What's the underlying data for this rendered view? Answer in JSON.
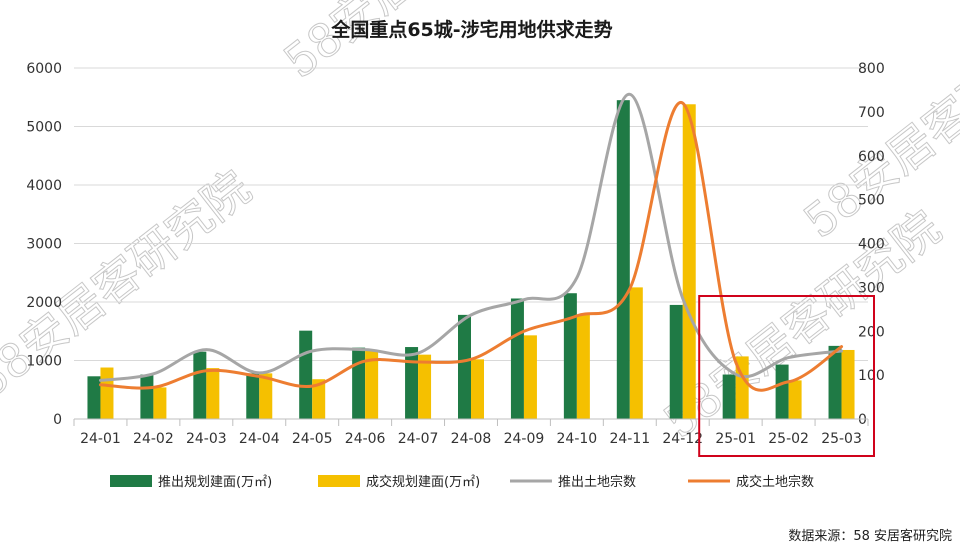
{
  "chart_data": {
    "type": "bar",
    "title": "全国重点65城-涉宅用地供求走势",
    "categories": [
      "24-01",
      "24-02",
      "24-03",
      "24-04",
      "24-05",
      "24-06",
      "24-07",
      "24-08",
      "24-09",
      "24-10",
      "24-11",
      "24-12",
      "25-01",
      "25-02",
      "25-03"
    ],
    "ylim_left": [
      0,
      6000
    ],
    "yticks_left": [
      "0",
      "1000",
      "2000",
      "3000",
      "4000",
      "5000",
      "6000"
    ],
    "ylim_right": [
      0,
      800
    ],
    "yticks_right": [
      "0",
      "100",
      "200",
      "300",
      "400",
      "500",
      "600",
      "700",
      "800"
    ],
    "grid": true,
    "legend_position": "bottom",
    "series": [
      {
        "name": "推出规划建面(万㎡)",
        "type": "bar",
        "axis": "left",
        "color": "#1f7a45",
        "values": [
          730,
          760,
          1150,
          780,
          1510,
          1220,
          1230,
          1780,
          2060,
          2150,
          5450,
          1950,
          760,
          930,
          1250
        ]
      },
      {
        "name": "成交规划建面(万㎡)",
        "type": "bar",
        "axis": "left",
        "color": "#f5c000",
        "values": [
          880,
          540,
          870,
          780,
          680,
          1180,
          1100,
          1020,
          1430,
          1780,
          2250,
          5380,
          1070,
          660,
          1180
        ]
      },
      {
        "name": "推出土地宗数",
        "type": "line",
        "axis": "right",
        "color": "#a6a6a6",
        "values": [
          88,
          103,
          158,
          105,
          155,
          158,
          150,
          237,
          272,
          322,
          740,
          275,
          102,
          140,
          155
        ]
      },
      {
        "name": "成交土地宗数",
        "type": "line",
        "axis": "right",
        "color": "#ed7d31",
        "values": [
          78,
          72,
          110,
          97,
          75,
          132,
          130,
          136,
          200,
          235,
          297,
          720,
          130,
          85,
          165
        ]
      }
    ],
    "highlight_box": {
      "categories": [
        "25-01",
        "25-02",
        "25-03"
      ],
      "color": "#d0021b"
    }
  },
  "source": "数据来源：58 安居客研究院",
  "watermark": [
    "58安居客研究院",
    "58安居客研究院",
    "58安居客研究院",
    "58安居客研究院"
  ]
}
